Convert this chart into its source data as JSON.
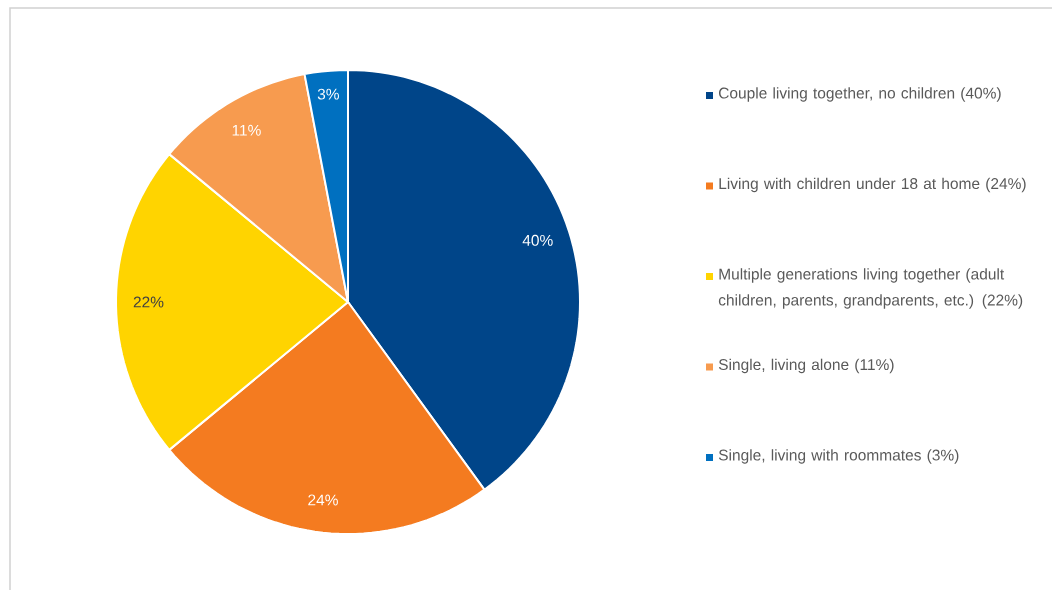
{
  "chart_data": {
    "type": "pie",
    "categories": [
      "Couple living together, no children (40%)",
      "Living with children under 18 at home (24%)",
      "Multiple generations living together (adult children, parents, grandparents, etc.) (22%)",
      "Single, living alone (11%)",
      "Single, living with roommates (3%)"
    ],
    "values": [
      40,
      24,
      22,
      11,
      3
    ],
    "colors": [
      "#004589",
      "#f47b20",
      "#ffd400",
      "#f79b4f",
      "#0070c0"
    ],
    "value_labels": [
      "40%",
      "24%",
      "22%",
      "11%",
      "3%"
    ],
    "legend": "right"
  }
}
